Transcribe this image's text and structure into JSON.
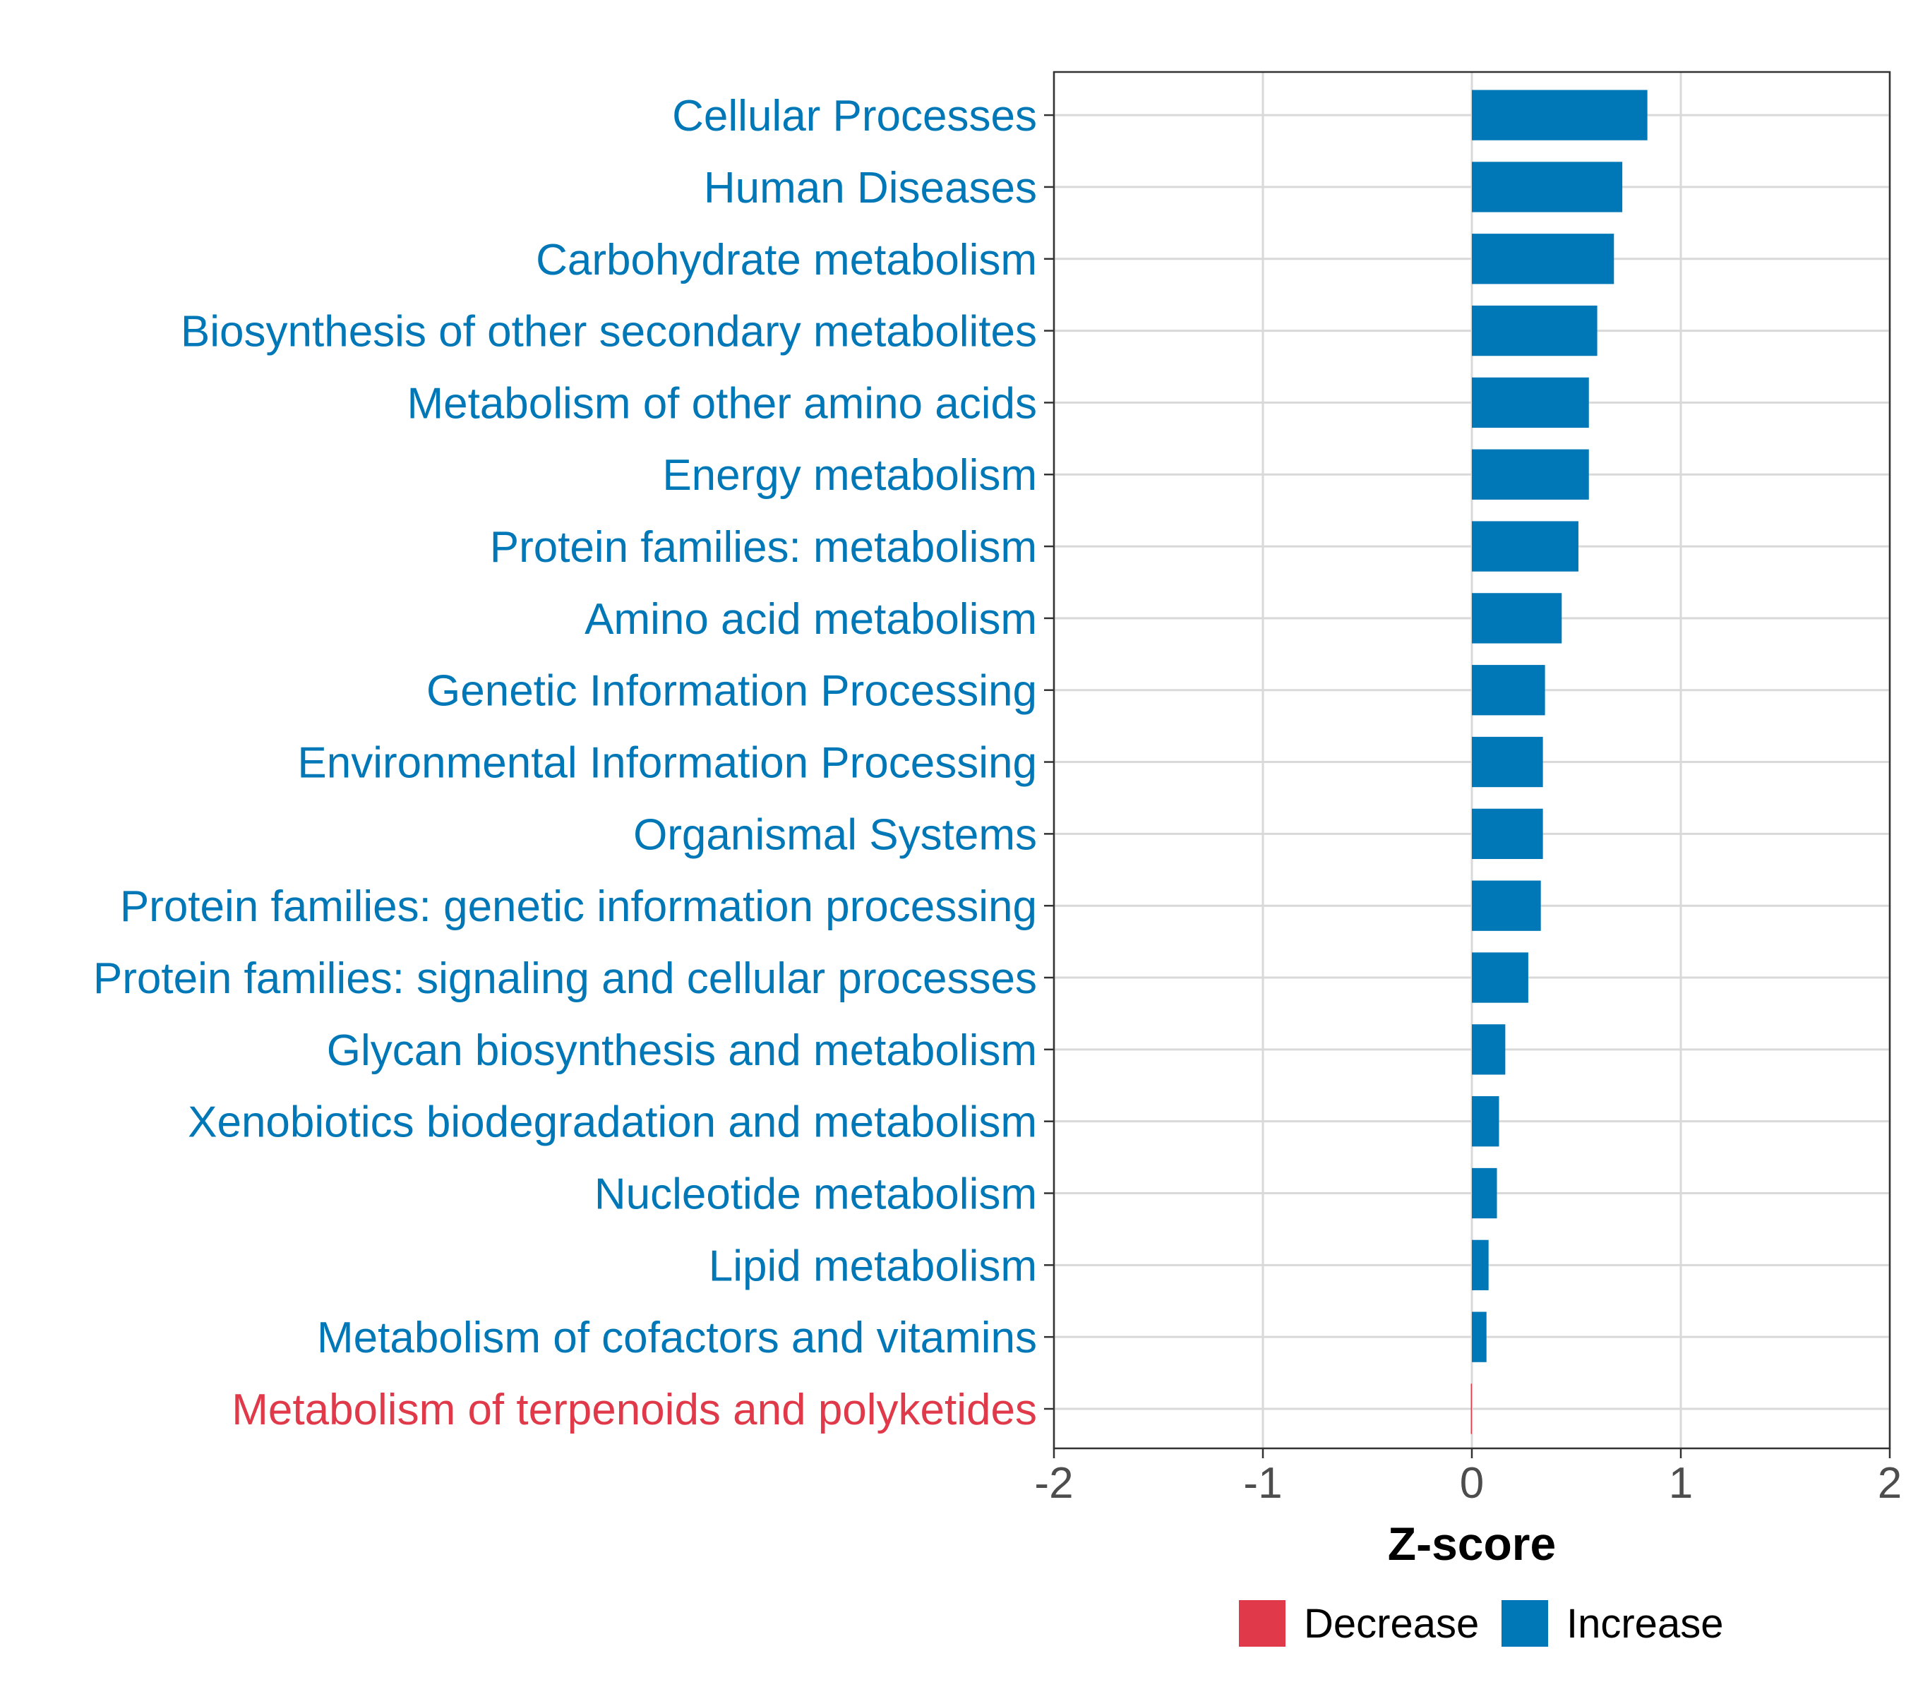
{
  "chart_data": {
    "type": "bar",
    "orientation": "horizontal",
    "title": "",
    "xlabel": "Z-score",
    "ylabel": "",
    "xlim": [
      -2,
      2
    ],
    "x_ticks": [
      "-2",
      "-1",
      "0",
      "1",
      "2"
    ],
    "grid": true,
    "legend_position": "bottom",
    "categories": [
      "Cellular Processes",
      "Human Diseases",
      "Carbohydrate metabolism",
      "Biosynthesis of other secondary metabolites",
      "Metabolism of other amino acids",
      "Energy metabolism",
      "Protein families: metabolism",
      "Amino acid metabolism",
      "Genetic Information Processing",
      "Environmental Information Processing",
      "Organismal Systems",
      "Protein families: genetic information processing",
      "Protein families: signaling and cellular processes",
      "Glycan biosynthesis and metabolism",
      "Xenobiotics biodegradation and metabolism",
      "Nucleotide metabolism",
      "Lipid metabolism",
      "Metabolism of cofactors and vitamins",
      "Metabolism of terpenoids and polyketides"
    ],
    "values": [
      0.84,
      0.72,
      0.68,
      0.6,
      0.56,
      0.56,
      0.51,
      0.43,
      0.35,
      0.34,
      0.34,
      0.33,
      0.27,
      0.16,
      0.13,
      0.12,
      0.08,
      0.07,
      -0.005
    ],
    "groups": [
      "Increase",
      "Increase",
      "Increase",
      "Increase",
      "Increase",
      "Increase",
      "Increase",
      "Increase",
      "Increase",
      "Increase",
      "Increase",
      "Increase",
      "Increase",
      "Increase",
      "Increase",
      "Increase",
      "Increase",
      "Increase",
      "Decrease"
    ],
    "legend": [
      {
        "label": "Decrease",
        "color": "#e03a4a"
      },
      {
        "label": "Increase",
        "color": "#0077b6"
      }
    ]
  }
}
